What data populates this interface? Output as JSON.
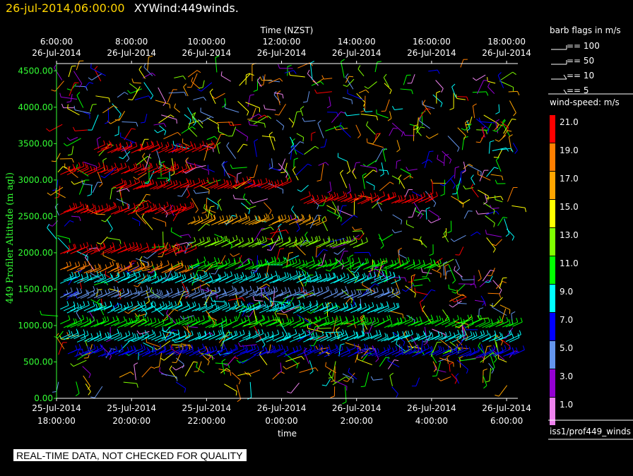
{
  "header": {
    "date": "26-jul-2014,06:00:00",
    "name": "XYWind:449winds."
  },
  "footer": {
    "text": "REAL-TIME DATA, NOT CHECKED FOR QUALITY"
  },
  "legend": {
    "barb_title": "barb flags in m/s",
    "barb_items": [
      "== 100",
      "== 50",
      "== 10",
      "== 5"
    ],
    "speed_title": "wind-speed: m/s",
    "source": "iss1/prof449_winds"
  },
  "chart_data": {
    "type": "scatter",
    "top_axis": {
      "title": "Time (NZST)",
      "ticks": [
        {
          "time": "6:00:00",
          "date": "26-Jul-2014"
        },
        {
          "time": "8:00:00",
          "date": "26-Jul-2014"
        },
        {
          "time": "10:00:00",
          "date": "26-Jul-2014"
        },
        {
          "time": "12:00:00",
          "date": "26-Jul-2014"
        },
        {
          "time": "14:00:00",
          "date": "26-Jul-2014"
        },
        {
          "time": "16:00:00",
          "date": "26-Jul-2014"
        },
        {
          "time": "18:00:00",
          "date": "26-Jul-2014"
        }
      ]
    },
    "bottom_axis": {
      "title": "time",
      "ticks": [
        {
          "date": "25-Jul-2014",
          "time": "18:00:00"
        },
        {
          "date": "25-Jul-2014",
          "time": "20:00:00"
        },
        {
          "date": "25-Jul-2014",
          "time": "22:00:00"
        },
        {
          "date": "26-Jul-2014",
          "time": "0:00:00"
        },
        {
          "date": "26-Jul-2014",
          "time": "2:00:00"
        },
        {
          "date": "26-Jul-2014",
          "time": "4:00:00"
        },
        {
          "date": "26-Jul-2014",
          "time": "6:00:00"
        }
      ]
    },
    "y_axis": {
      "label": "449 Profiler Altitude (m agl)",
      "ticks": [
        "0.00",
        "500.00",
        "1000.00",
        "1500.00",
        "2000.00",
        "2500.00",
        "3000.00",
        "3500.00",
        "4000.00",
        "4500.00"
      ],
      "ylim": [
        0,
        4600
      ]
    },
    "xlim_hours": [
      0,
      12.3
    ],
    "colorbar": {
      "labels": [
        "21.0",
        "19.0",
        "17.0",
        "15.0",
        "13.0",
        "11.0",
        "9.0",
        "7.0",
        "5.0",
        "3.0",
        "1.0"
      ],
      "colors": [
        "#ff0000",
        "#ff7f00",
        "#ffa500",
        "#ffff00",
        "#80ff00",
        "#00ff00",
        "#00ffff",
        "#0000ff",
        "#6495ed",
        "#9400d3",
        "#ee82ee"
      ]
    },
    "bands": [
      {
        "alt": 600,
        "x": [
          0.3,
          12.2
        ],
        "speed": 6
      },
      {
        "alt": 800,
        "x": [
          0.1,
          12.2
        ],
        "speed": 9
      },
      {
        "alt": 1000,
        "x": [
          0.1,
          12.2
        ],
        "speed": 11
      },
      {
        "alt": 1200,
        "x": [
          0.1,
          9.0
        ],
        "speed": 9
      },
      {
        "alt": 1400,
        "x": [
          0.1,
          9.0
        ],
        "speed": 4
      },
      {
        "alt": 1600,
        "x": [
          0.1,
          9.0
        ],
        "speed": 8
      },
      {
        "alt": 1750,
        "x": [
          0.1,
          3.5
        ],
        "speed": 19
      },
      {
        "alt": 1800,
        "x": [
          3.5,
          10.0
        ],
        "speed": 11
      },
      {
        "alt": 2000,
        "x": [
          0.1,
          3.5
        ],
        "speed": 20
      },
      {
        "alt": 2100,
        "x": [
          3.5,
          8.0
        ],
        "speed": 12
      },
      {
        "alt": 2400,
        "x": [
          3.5,
          7.0
        ],
        "speed": 16
      },
      {
        "alt": 2550,
        "x": [
          0.1,
          3.5
        ],
        "speed": 21
      },
      {
        "alt": 2700,
        "x": [
          6.5,
          10.0
        ],
        "speed": 21
      },
      {
        "alt": 2900,
        "x": [
          1.5,
          6.0
        ],
        "speed": 21
      },
      {
        "alt": 3100,
        "x": [
          0.1,
          3.5
        ],
        "speed": 21
      },
      {
        "alt": 3400,
        "x": [
          1.0,
          4.0
        ],
        "speed": 21
      }
    ]
  }
}
